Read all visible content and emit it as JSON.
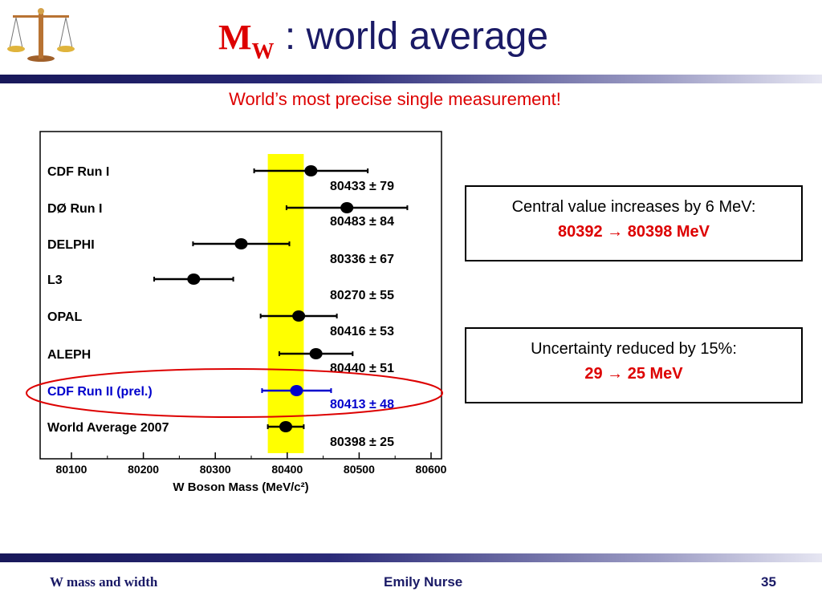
{
  "slide": {
    "title_symbol": "M",
    "title_subscript": "W",
    "title_rest": " : world average",
    "subtitle": "World’s most precise single measurement!",
    "box1": {
      "line1": "Central value increases by 6 MeV:",
      "line2": "80392 → 80398 MeV"
    },
    "box2": {
      "line1": "Uncertainty reduced by 15%:",
      "line2": "29 → 25 MeV"
    },
    "footer": {
      "left": "W mass and width",
      "center": "Emily Nurse",
      "right": "35"
    },
    "colors": {
      "title_text": "#1a1a66",
      "accent_red": "#dd0000",
      "band": "#ffff00",
      "highlight": "#0000cc"
    },
    "logo_icon": "balance-scale-icon"
  },
  "chart_data": {
    "type": "scatter",
    "xlabel": "W Boson Mass (MeV/c²)",
    "xlim": [
      80050,
      80600
    ],
    "xticks": [
      80100,
      80200,
      80300,
      80400,
      80500,
      80600
    ],
    "band": {
      "center": 80398,
      "error": 25
    },
    "points": [
      {
        "label": "CDF Run I",
        "value": 80433,
        "error": 79,
        "text": "80433 ± 79",
        "highlight": false
      },
      {
        "label": "DØ Run I",
        "value": 80483,
        "error": 84,
        "text": "80483 ± 84",
        "highlight": false
      },
      {
        "label": "DELPHI",
        "value": 80336,
        "error": 67,
        "text": "80336 ± 67",
        "highlight": false
      },
      {
        "label": "L3",
        "value": 80270,
        "error": 55,
        "text": "80270 ± 55",
        "highlight": false
      },
      {
        "label": "OPAL",
        "value": 80416,
        "error": 53,
        "text": "80416 ± 53",
        "highlight": false
      },
      {
        "label": "ALEPH",
        "value": 80440,
        "error": 51,
        "text": "80440 ± 51",
        "highlight": false
      },
      {
        "label": "CDF Run II (prel.)",
        "value": 80413,
        "error": 48,
        "text": "80413 ± 48",
        "highlight": true
      },
      {
        "label": "World Average 2007",
        "value": 80398,
        "error": 25,
        "text": "80398 ± 25",
        "highlight": false
      }
    ]
  }
}
